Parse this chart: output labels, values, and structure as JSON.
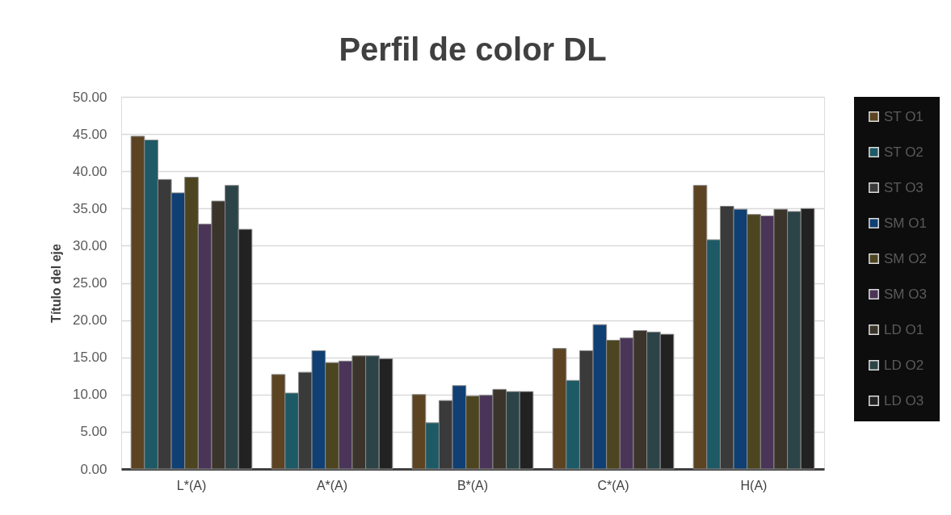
{
  "chart_data": {
    "type": "bar",
    "title": "Perfil de color DL",
    "ylabel": "Título del eje",
    "categories": [
      "L*(A)",
      "A*(A)",
      "B*(A)",
      "C*(A)",
      "H(A)"
    ],
    "series": [
      {
        "name": "ST O1",
        "color": "#5c4322",
        "values": [
          44.7,
          12.7,
          10.0,
          16.2,
          38.1
        ]
      },
      {
        "name": "ST O2",
        "color": "#1d5a66",
        "values": [
          44.2,
          10.2,
          6.2,
          11.9,
          30.8
        ]
      },
      {
        "name": "ST O3",
        "color": "#3a3a3a",
        "values": [
          38.9,
          13.0,
          9.2,
          15.9,
          35.3
        ]
      },
      {
        "name": "SM O1",
        "color": "#0f3f73",
        "values": [
          37.1,
          15.9,
          11.2,
          19.4,
          34.9
        ]
      },
      {
        "name": "SM O2",
        "color": "#4d4520",
        "values": [
          39.2,
          14.3,
          9.8,
          17.3,
          34.2
        ]
      },
      {
        "name": "SM O3",
        "color": "#4a3558",
        "values": [
          32.9,
          14.5,
          9.9,
          17.6,
          34.0
        ]
      },
      {
        "name": "LD O1",
        "color": "#3b342a",
        "values": [
          36.0,
          15.2,
          10.7,
          18.6,
          34.9
        ]
      },
      {
        "name": "LD O2",
        "color": "#2c4448",
        "values": [
          38.1,
          15.2,
          10.4,
          18.4,
          34.6
        ]
      },
      {
        "name": "LD O3",
        "color": "#222222",
        "values": [
          32.2,
          14.8,
          10.4,
          18.1,
          35.0
        ]
      }
    ],
    "ylim": [
      0,
      50
    ],
    "yticks": [
      {
        "value": 0,
        "label": "0.00"
      },
      {
        "value": 5,
        "label": "5.00"
      },
      {
        "value": 10,
        "label": "10.00"
      },
      {
        "value": 15,
        "label": "15.00"
      },
      {
        "value": 20,
        "label": "20.00"
      },
      {
        "value": 25,
        "label": "25.00"
      },
      {
        "value": 30,
        "label": "30.00"
      },
      {
        "value": 35,
        "label": "35.00"
      },
      {
        "value": 40,
        "label": "40.00"
      },
      {
        "value": 45,
        "label": "45.00"
      },
      {
        "value": 50,
        "label": "50.00"
      }
    ],
    "grid": "y",
    "legend": "right"
  }
}
